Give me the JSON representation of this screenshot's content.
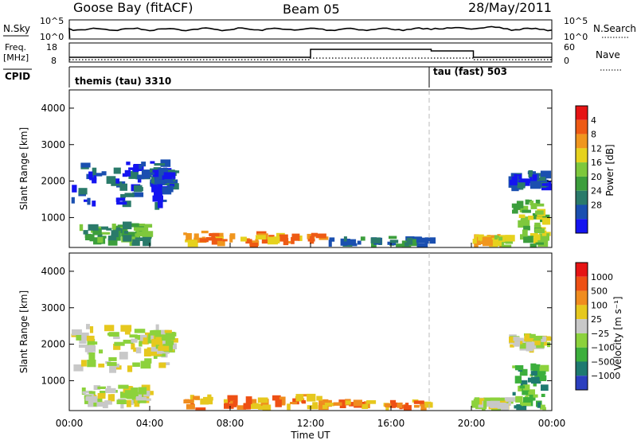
{
  "header": {
    "station": "Goose Bay (fitACF)",
    "beam": "Beam 05",
    "date": "28/May/2011"
  },
  "top_panels": {
    "nsky_label": "N.Sky",
    "nsky_ticks": [
      "10^5",
      "10^0"
    ],
    "nsearch_label": "N.Search",
    "nsearch_ticks": [
      "10^5",
      "10^0"
    ],
    "freq_label_1": "Freq.",
    "freq_label_2": "[MHz]",
    "freq_ticks": [
      "18",
      "8"
    ],
    "nave_label": "Nave",
    "nave_ticks": [
      "60",
      "0"
    ],
    "cpid_label": "CPID",
    "cpid_left": "themis (tau) 3310",
    "cpid_right": "tau (fast) 503"
  },
  "chart_data": [
    {
      "type": "heatmap",
      "title": "",
      "xlabel": "Time UT",
      "ylabel": "Slant Range [km]",
      "x_ticks": [
        "00:00",
        "04:00",
        "08:00",
        "12:00",
        "16:00",
        "20:00",
        "00:00"
      ],
      "y_ticks": [
        "1000",
        "2000",
        "3000",
        "4000"
      ],
      "xlim_hours": [
        0,
        24
      ],
      "ylim_km": [
        180,
        4500
      ],
      "colorbar": {
        "label": "Power [dB]",
        "ticks": [
          "4",
          "8",
          "12",
          "16",
          "20",
          "24",
          "28"
        ],
        "colors": [
          "#1414f0",
          "#1a4fb0",
          "#2a7a6a",
          "#3c9e3c",
          "#7ec83c",
          "#e6d21e",
          "#f0961e",
          "#ee5a14",
          "#e61414"
        ]
      },
      "regions": [
        {
          "t": [
            0.1,
            4.6
          ],
          "r": [
            1400,
            2600
          ],
          "level": 1
        },
        {
          "t": [
            0.5,
            3.8
          ],
          "r": [
            400,
            900
          ],
          "level": 3
        },
        {
          "t": [
            4.0,
            5.0
          ],
          "r": [
            1800,
            2400
          ],
          "level": 1
        },
        {
          "t": [
            5.5,
            12.5
          ],
          "r": [
            220,
            650
          ],
          "level": 6
        },
        {
          "t": [
            12.5,
            17.8
          ],
          "r": [
            220,
            500
          ],
          "level": 2
        },
        {
          "t": [
            20.0,
            21.7
          ],
          "r": [
            220,
            550
          ],
          "level": 5
        },
        {
          "t": [
            21.8,
            24.0
          ],
          "r": [
            1900,
            2300
          ],
          "level": 1
        },
        {
          "t": [
            22.0,
            24.0
          ],
          "r": [
            200,
            1500
          ],
          "level": 4
        }
      ]
    },
    {
      "type": "heatmap",
      "title": "",
      "xlabel": "Time UT",
      "ylabel": "Slant Range [km]",
      "x_ticks": [
        "00:00",
        "04:00",
        "08:00",
        "12:00",
        "16:00",
        "20:00",
        "00:00"
      ],
      "y_ticks": [
        "1000",
        "2000",
        "3000",
        "4000"
      ],
      "xlim_hours": [
        0,
        24
      ],
      "ylim_km": [
        180,
        4500
      ],
      "colorbar": {
        "label": "Velocity [m s⁻¹]",
        "ticks": [
          "1000",
          "500",
          "100",
          "25",
          "−25",
          "−100",
          "−500",
          "−1000"
        ],
        "colors": [
          "#2b3fbf",
          "#1e7a70",
          "#3caf3c",
          "#8cd23c",
          "#c8c8c8",
          "#e6c81e",
          "#f08c1e",
          "#ee5014",
          "#e61414"
        ]
      },
      "regions": [
        {
          "t": [
            0.1,
            4.6
          ],
          "r": [
            1400,
            2600
          ],
          "level": 4
        },
        {
          "t": [
            0.5,
            3.8
          ],
          "r": [
            400,
            900
          ],
          "level": 4
        },
        {
          "t": [
            4.0,
            5.0
          ],
          "r": [
            1800,
            2400
          ],
          "level": 4
        },
        {
          "t": [
            5.5,
            12.5
          ],
          "r": [
            220,
            650
          ],
          "level": 6
        },
        {
          "t": [
            12.5,
            17.8
          ],
          "r": [
            220,
            500
          ],
          "level": 6
        },
        {
          "t": [
            20.0,
            21.7
          ],
          "r": [
            220,
            550
          ],
          "level": 4
        },
        {
          "t": [
            21.8,
            24.0
          ],
          "r": [
            1900,
            2300
          ],
          "level": 4
        },
        {
          "t": [
            22.0,
            24.0
          ],
          "r": [
            200,
            1500
          ],
          "level": 2
        }
      ]
    }
  ]
}
